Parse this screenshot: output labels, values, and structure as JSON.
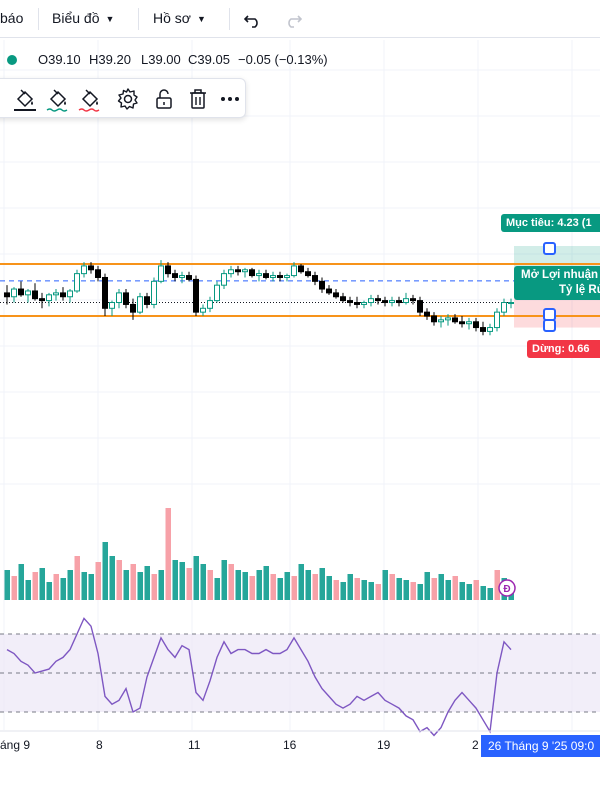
{
  "topbar": {
    "partial_label": "báo",
    "chart_menu": "Biểu đồ",
    "profile_menu": "Hồ sơ"
  },
  "ohlc": {
    "open": "O39.10",
    "high": "H39.20",
    "low": "L39.00",
    "close": "C39.05",
    "change": "−0.05 (−0.13%)",
    "status_color": "#089981"
  },
  "drawing_toolbar": {
    "tools": [
      "paint-bucket-icon",
      "line-color-icon",
      "line-style-icon",
      "settings-gear-icon",
      "unlock-icon",
      "trash-icon",
      "more-options-icon"
    ]
  },
  "position_tool": {
    "target_label": "Mục tiêu: 4.23 (1",
    "pl_label_line1": "Mở Lợi nhuận",
    "pl_label_line2": "Tỷ lệ Rủ",
    "stop_label": "Dừng: 0.66",
    "profit_color": "#089981",
    "loss_color": "#f23645"
  },
  "x_axis": {
    "ticks": [
      "áng 9",
      "8",
      "11",
      "16",
      "19",
      "2"
    ],
    "crosshair_label": "26 Tháng 9 '25  09:0"
  },
  "dividend_marker": "Đ",
  "colors": {
    "up": "#089981",
    "down": "#000000",
    "vol_up": "#26a69a",
    "vol_down": "#f7a1a8",
    "level_line": "#f7931a",
    "rsi_line": "#7e57c2",
    "rsi_band": "#ede7f6"
  },
  "chart_data": {
    "type": "candlestick",
    "note_series": "price",
    "levels": [
      39.25,
      39.1,
      38.98
    ],
    "candles": [
      [
        39.1,
        39.14,
        39.04,
        39.08
      ],
      [
        39.08,
        39.13,
        39.05,
        39.12
      ],
      [
        39.12,
        39.16,
        39.08,
        39.09
      ],
      [
        39.09,
        39.12,
        39.05,
        39.11
      ],
      [
        39.11,
        39.15,
        39.06,
        39.07
      ],
      [
        39.07,
        39.1,
        39.02,
        39.06
      ],
      [
        39.06,
        39.1,
        39.03,
        39.09
      ],
      [
        39.09,
        39.12,
        39.06,
        39.1
      ],
      [
        39.1,
        39.13,
        39.06,
        39.08
      ],
      [
        39.08,
        39.12,
        39.05,
        39.11
      ],
      [
        39.11,
        39.22,
        39.1,
        39.2
      ],
      [
        39.2,
        39.26,
        39.18,
        39.24
      ],
      [
        39.24,
        39.26,
        39.2,
        39.22
      ],
      [
        39.22,
        39.24,
        39.16,
        39.18
      ],
      [
        39.18,
        39.2,
        38.98,
        39.02
      ],
      [
        39.02,
        39.06,
        38.98,
        39.05
      ],
      [
        39.05,
        39.12,
        39.02,
        39.1
      ],
      [
        39.1,
        39.12,
        39.02,
        39.04
      ],
      [
        39.04,
        39.07,
        38.96,
        39.0
      ],
      [
        39.0,
        39.1,
        38.99,
        39.08
      ],
      [
        39.08,
        39.1,
        39.02,
        39.04
      ],
      [
        39.04,
        39.18,
        39.02,
        39.16
      ],
      [
        39.16,
        39.27,
        39.15,
        39.24
      ],
      [
        39.24,
        39.26,
        39.18,
        39.2
      ],
      [
        39.2,
        39.22,
        39.16,
        39.18
      ],
      [
        39.18,
        39.21,
        39.15,
        39.19
      ],
      [
        39.19,
        39.21,
        39.16,
        39.17
      ],
      [
        39.17,
        39.19,
        38.98,
        39.0
      ],
      [
        39.0,
        39.04,
        38.98,
        39.02
      ],
      [
        39.02,
        39.08,
        39.0,
        39.06
      ],
      [
        39.06,
        39.16,
        39.05,
        39.14
      ],
      [
        39.14,
        39.22,
        39.12,
        39.2
      ],
      [
        39.2,
        39.24,
        39.18,
        39.22
      ],
      [
        39.22,
        39.24,
        39.19,
        39.21
      ],
      [
        39.21,
        39.23,
        39.18,
        39.22
      ],
      [
        39.22,
        39.23,
        39.18,
        39.19
      ],
      [
        39.19,
        39.22,
        39.16,
        39.2
      ],
      [
        39.2,
        39.22,
        39.17,
        39.18
      ],
      [
        39.18,
        39.21,
        39.16,
        39.19
      ],
      [
        39.19,
        39.21,
        39.16,
        39.18
      ],
      [
        39.18,
        39.2,
        39.16,
        39.19
      ],
      [
        39.19,
        39.26,
        39.18,
        39.24
      ],
      [
        39.24,
        39.25,
        39.2,
        39.21
      ],
      [
        39.21,
        39.23,
        39.18,
        39.19
      ],
      [
        39.19,
        39.21,
        39.14,
        39.16
      ],
      [
        39.16,
        39.18,
        39.1,
        39.12
      ],
      [
        39.12,
        39.14,
        39.09,
        39.1
      ],
      [
        39.1,
        39.12,
        39.07,
        39.08
      ],
      [
        39.08,
        39.1,
        39.05,
        39.06
      ],
      [
        39.06,
        39.08,
        39.03,
        39.05
      ],
      [
        39.05,
        39.08,
        39.02,
        39.04
      ],
      [
        39.04,
        39.06,
        39.02,
        39.05
      ],
      [
        39.05,
        39.09,
        39.03,
        39.07
      ],
      [
        39.07,
        39.09,
        39.04,
        39.06
      ],
      [
        39.06,
        39.08,
        39.03,
        39.05
      ],
      [
        39.05,
        39.08,
        39.03,
        39.06
      ],
      [
        39.06,
        39.08,
        39.03,
        39.05
      ],
      [
        39.05,
        39.1,
        39.04,
        39.07
      ],
      [
        39.07,
        39.09,
        39.04,
        39.06
      ],
      [
        39.06,
        39.08,
        38.98,
        39.0
      ],
      [
        39.0,
        39.02,
        38.96,
        38.98
      ],
      [
        38.98,
        39.0,
        38.93,
        38.95
      ],
      [
        38.95,
        38.98,
        38.92,
        38.96
      ],
      [
        38.96,
        38.99,
        38.93,
        38.97
      ],
      [
        38.97,
        38.99,
        38.94,
        38.95
      ],
      [
        38.95,
        38.98,
        38.92,
        38.94
      ],
      [
        38.94,
        38.97,
        38.91,
        38.95
      ],
      [
        38.95,
        38.97,
        38.9,
        38.92
      ],
      [
        38.92,
        38.95,
        38.88,
        38.9
      ],
      [
        38.9,
        38.94,
        38.88,
        38.92
      ],
      [
        38.92,
        39.02,
        38.9,
        39.0
      ],
      [
        39.0,
        39.07,
        38.98,
        39.05
      ],
      [
        39.05,
        39.07,
        39.02,
        39.05
      ]
    ],
    "volume": [
      [
        30,
        1
      ],
      [
        24,
        0
      ],
      [
        36,
        1
      ],
      [
        20,
        1
      ],
      [
        28,
        0
      ],
      [
        32,
        1
      ],
      [
        18,
        1
      ],
      [
        26,
        0
      ],
      [
        22,
        1
      ],
      [
        30,
        1
      ],
      [
        44,
        0
      ],
      [
        28,
        1
      ],
      [
        26,
        1
      ],
      [
        38,
        0
      ],
      [
        58,
        1
      ],
      [
        44,
        1
      ],
      [
        40,
        0
      ],
      [
        30,
        1
      ],
      [
        36,
        0
      ],
      [
        28,
        1
      ],
      [
        34,
        1
      ],
      [
        26,
        0
      ],
      [
        30,
        1
      ],
      [
        92,
        0
      ],
      [
        40,
        1
      ],
      [
        38,
        1
      ],
      [
        32,
        0
      ],
      [
        44,
        1
      ],
      [
        36,
        1
      ],
      [
        30,
        0
      ],
      [
        22,
        1
      ],
      [
        40,
        1
      ],
      [
        36,
        0
      ],
      [
        30,
        1
      ],
      [
        28,
        1
      ],
      [
        24,
        0
      ],
      [
        30,
        1
      ],
      [
        34,
        1
      ],
      [
        26,
        0
      ],
      [
        22,
        1
      ],
      [
        28,
        1
      ],
      [
        24,
        0
      ],
      [
        36,
        1
      ],
      [
        30,
        1
      ],
      [
        26,
        0
      ],
      [
        32,
        1
      ],
      [
        24,
        1
      ],
      [
        20,
        0
      ],
      [
        18,
        1
      ],
      [
        26,
        1
      ],
      [
        22,
        0
      ],
      [
        20,
        1
      ],
      [
        18,
        1
      ],
      [
        16,
        0
      ],
      [
        30,
        1
      ],
      [
        26,
        0
      ],
      [
        22,
        1
      ],
      [
        20,
        1
      ],
      [
        18,
        0
      ],
      [
        16,
        1
      ],
      [
        28,
        1
      ],
      [
        22,
        0
      ],
      [
        26,
        1
      ],
      [
        20,
        1
      ],
      [
        24,
        0
      ],
      [
        18,
        1
      ],
      [
        16,
        1
      ],
      [
        20,
        0
      ],
      [
        14,
        1
      ],
      [
        12,
        1
      ],
      [
        30,
        0
      ],
      [
        22,
        1
      ],
      [
        8,
        1
      ]
    ],
    "rsi": [
      62,
      60,
      56,
      54,
      50,
      51,
      52,
      56,
      58,
      62,
      70,
      78,
      74,
      60,
      38,
      34,
      36,
      42,
      30,
      32,
      48,
      58,
      68,
      62,
      58,
      64,
      62,
      40,
      36,
      46,
      58,
      66,
      60,
      62,
      62,
      60,
      60,
      62,
      60,
      60,
      62,
      68,
      62,
      56,
      48,
      42,
      38,
      34,
      32,
      34,
      38,
      36,
      38,
      40,
      36,
      34,
      32,
      28,
      26,
      20,
      22,
      18,
      22,
      30,
      36,
      40,
      36,
      32,
      26,
      20,
      50,
      66,
      62
    ],
    "rsi_levels": [
      70,
      50,
      30
    ]
  }
}
